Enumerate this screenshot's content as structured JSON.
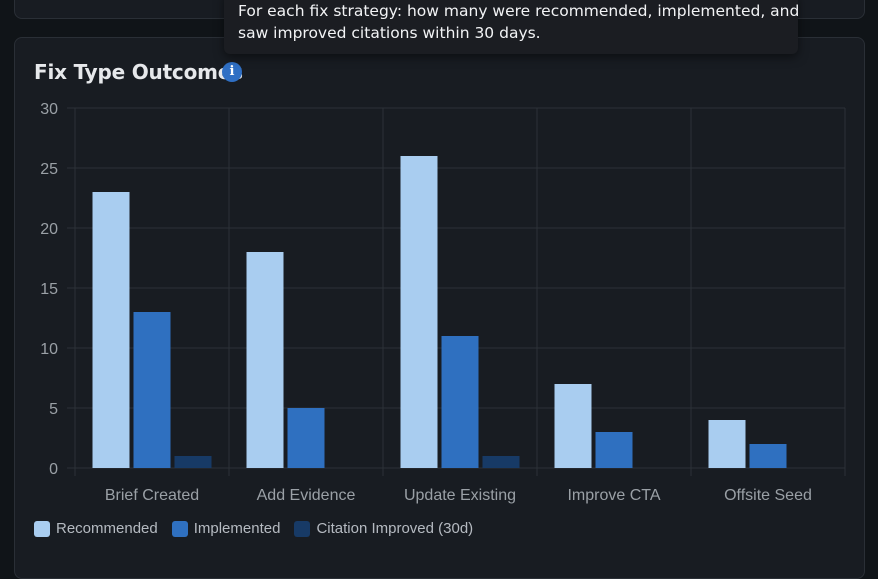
{
  "tooltip": {
    "line1": "For each fix strategy: how many were recommended, implemented, and",
    "line2": "saw improved citations within 30 days."
  },
  "card": {
    "title": "Fix Type Outcomes",
    "info_glyph": "i"
  },
  "colors": {
    "recommended": "#a9cdf0",
    "implemented": "#2f70c0",
    "citation_improved": "#173a66",
    "grid": "#2c3138",
    "tick_text": "#9aa0a6"
  },
  "chart_data": {
    "type": "bar",
    "categories": [
      "Brief Created",
      "Add Evidence",
      "Update Existing",
      "Improve CTA",
      "Offsite Seed"
    ],
    "series": [
      {
        "name": "Recommended",
        "values": [
          23,
          18,
          26,
          7,
          4
        ]
      },
      {
        "name": "Implemented",
        "values": [
          13,
          5,
          11,
          3,
          2
        ]
      },
      {
        "name": "Citation Improved (30d)",
        "values": [
          1,
          0,
          1,
          0,
          0
        ]
      }
    ],
    "ylim": [
      0,
      30
    ],
    "yticks": [
      0,
      5,
      10,
      15,
      20,
      25,
      30
    ],
    "grid": true,
    "legend": "bottom-left"
  }
}
